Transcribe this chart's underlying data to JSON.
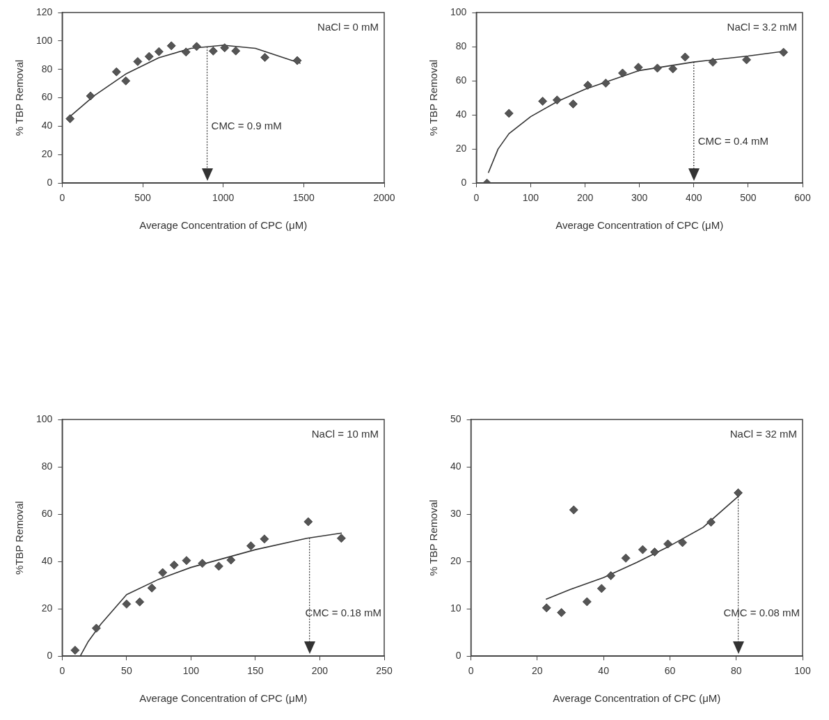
{
  "chart_data": [
    {
      "type": "scatter",
      "xlabel": "Average Concentration of CPC (μM)",
      "ylabel": "% TBP Removal",
      "xlim": [
        0,
        2000
      ],
      "xticks": [
        0,
        500,
        1000,
        1500,
        2000
      ],
      "ylim": [
        0,
        120
      ],
      "yticks": [
        0,
        20,
        40,
        60,
        80,
        100,
        120
      ],
      "marker": "diamond",
      "annotations": [
        "NaCl = 0 mM",
        {
          "text": "CMC = 0.9 mM",
          "x": 900,
          "y": 40
        }
      ],
      "ref_lines": [
        {
          "axis": "x",
          "value": 900,
          "line_style": "dotted",
          "color": "#333333"
        }
      ],
      "series": [
        {
          "color": "#555555",
          "x": [
            49,
            176,
            337,
            395,
            469,
            540,
            601,
            678,
            769,
            835,
            938,
            1009,
            1078,
            1259,
            1460
          ],
          "values": [
            45.3,
            61.3,
            78.3,
            71.9,
            85.5,
            89.1,
            92.5,
            96.6,
            92.2,
            96.1,
            92.9,
            95.2,
            93,
            88.4,
            86.2
          ]
        },
        {
          "type": "line",
          "marker": "none",
          "color": "#333333",
          "x": [
            40,
            200,
            400,
            600,
            800,
            1000,
            1200,
            1480
          ],
          "values": [
            46,
            61.6,
            77.1,
            88.2,
            94.8,
            97,
            94.8,
            84.3
          ]
        }
      ]
    },
    {
      "type": "scatter",
      "xlabel": "Average Concentration of CPC (μM)",
      "ylabel": "% TBP Removal",
      "xlim": [
        0,
        600
      ],
      "xticks": [
        0,
        100,
        200,
        300,
        400,
        500,
        600
      ],
      "ylim": [
        0,
        100
      ],
      "yticks": [
        0,
        20,
        40,
        60,
        80,
        100
      ],
      "marker": "diamond",
      "annotations": [
        "NaCl = 3.2 mM",
        {
          "text": "CMC = 0.4 mM",
          "x": 400,
          "y": 24
        }
      ],
      "ref_lines": [
        {
          "axis": "x",
          "value": 400,
          "line_style": "dotted",
          "color": "#333333"
        }
      ],
      "series": [
        {
          "color": "#555555",
          "x": [
            19.5,
            60,
            122,
            148.5,
            178,
            205,
            238,
            269,
            298,
            333,
            361.5,
            384,
            435,
            497,
            565
          ],
          "values": [
            0,
            40.9,
            48,
            48.7,
            46.4,
            57.4,
            58.6,
            64.5,
            67.9,
            67.4,
            67,
            73.9,
            70.9,
            72.3,
            76.7
          ]
        },
        {
          "type": "line",
          "marker": "none",
          "color": "#333333",
          "x": [
            22,
            40,
            60,
            100,
            150,
            200,
            300,
            400,
            500,
            570
          ],
          "values": [
            6,
            20,
            29,
            39,
            48,
            55,
            66,
            71,
            74.5,
            77.5
          ]
        }
      ]
    },
    {
      "type": "scatter",
      "xlabel": "Average Concentration of CPC (μM)",
      "ylabel": "%TBP Removal",
      "xlim": [
        0,
        250
      ],
      "xticks": [
        0,
        50,
        100,
        150,
        200,
        250
      ],
      "ylim": [
        0,
        100
      ],
      "yticks": [
        0,
        20,
        40,
        60,
        80,
        100
      ],
      "marker": "diamond",
      "annotations": [
        "NaCl = 10 mM",
        {
          "text": "CMC = 0.18 mM",
          "x": 192,
          "y": 18
        }
      ],
      "ref_lines": [
        {
          "axis": "x",
          "value": 192,
          "line_style": "dotted",
          "color": "#333333"
        }
      ],
      "series": [
        {
          "color": "#555555",
          "x": [
            10,
            26.5,
            50,
            60.2,
            69.6,
            78,
            86.9,
            96.5,
            108.8,
            121.6,
            131,
            146.5,
            157,
            191,
            216.7
          ],
          "values": [
            2.5,
            11.8,
            22,
            22.9,
            28.8,
            35.3,
            38.5,
            40.4,
            39.2,
            38,
            40.6,
            46.6,
            49.5,
            56.8,
            49.8
          ]
        },
        {
          "type": "line",
          "marker": "none",
          "color": "#333333",
          "x": [
            14,
            20,
            30,
            50,
            75,
            100,
            150,
            190,
            217
          ],
          "values": [
            0,
            6,
            13.5,
            26,
            32.5,
            37.5,
            45,
            49.8,
            52
          ]
        }
      ]
    },
    {
      "type": "scatter",
      "xlabel": "Average Concentration of CPC (μM)",
      "ylabel": "% TBP Removal",
      "xlim": [
        0,
        100
      ],
      "xticks": [
        0,
        20,
        40,
        60,
        80,
        100
      ],
      "ylim": [
        0,
        50
      ],
      "yticks": [
        0,
        10,
        20,
        30,
        40,
        50
      ],
      "marker": "diamond",
      "annotations": [
        "NaCl = 32 mM",
        {
          "text": "CMC = 0.08 mM",
          "x": 80.6,
          "y": 9
        }
      ],
      "ref_lines": [
        {
          "axis": "x",
          "value": 80.6,
          "line_style": "dotted",
          "color": "#333333"
        }
      ],
      "series": [
        {
          "color": "#555555",
          "x": [
            22.8,
            27.3,
            31,
            35,
            39.4,
            42.2,
            46.7,
            51.8,
            55.4,
            59.4,
            63.8,
            72.4,
            80.6
          ],
          "values": [
            10.2,
            9.2,
            30.9,
            11.5,
            14.3,
            17,
            20.7,
            22.5,
            22,
            23.7,
            24,
            28.3,
            34.5
          ]
        },
        {
          "type": "line",
          "marker": "none",
          "color": "#333333",
          "x": [
            22.6,
            30,
            40,
            50,
            60,
            70,
            81
          ],
          "values": [
            12,
            14.1,
            16.6,
            19.8,
            23.3,
            27.2,
            34
          ]
        }
      ]
    }
  ]
}
